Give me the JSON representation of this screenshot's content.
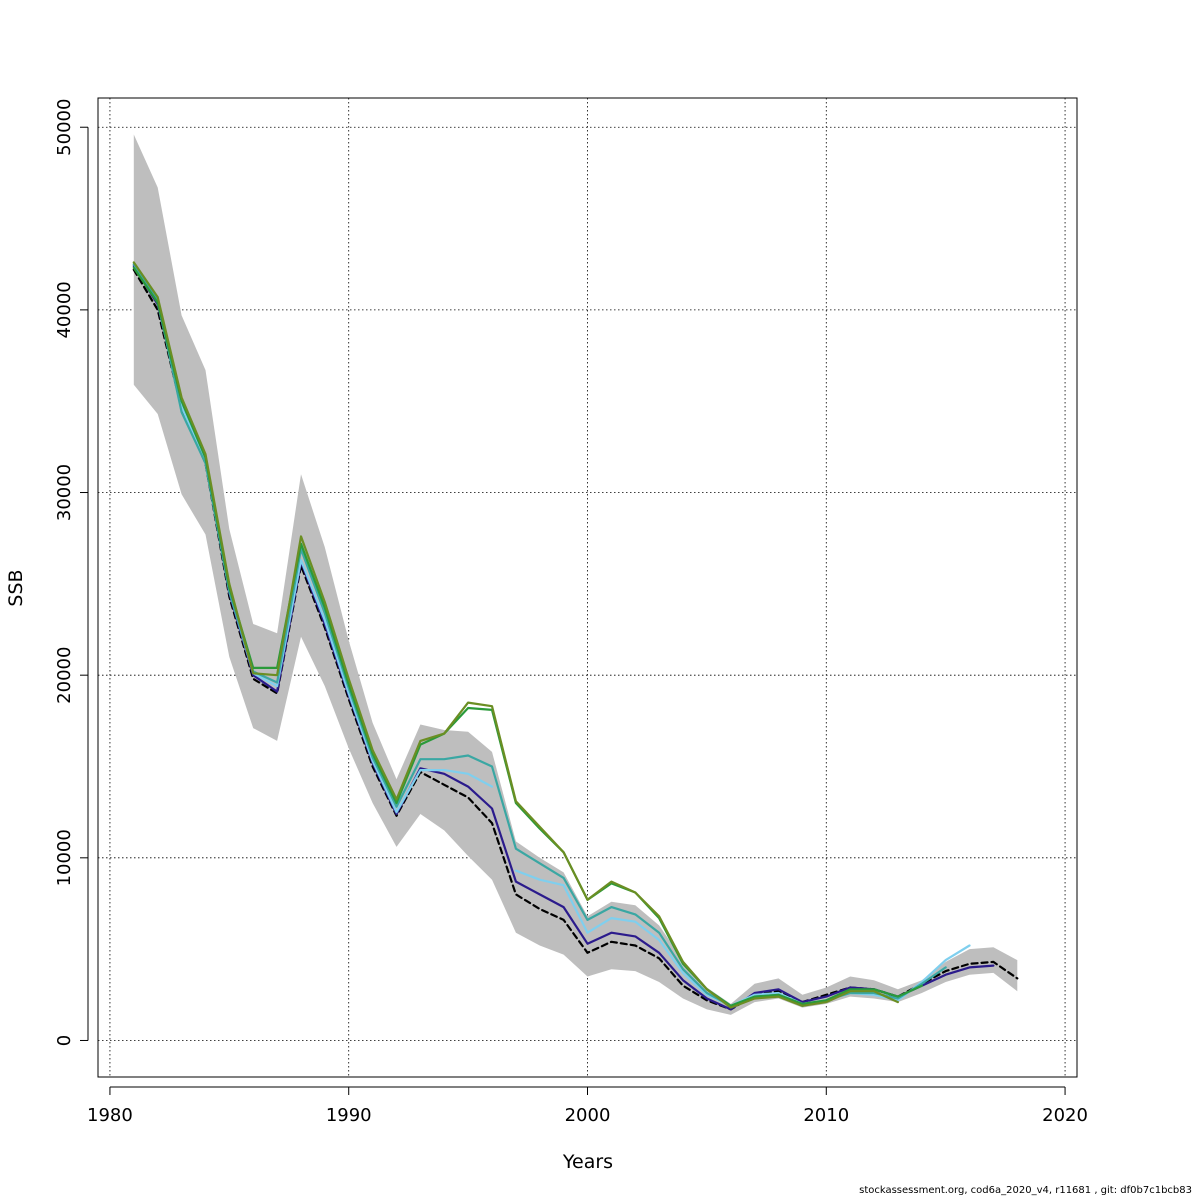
{
  "chart_data": {
    "type": "line",
    "xlabel": "Years",
    "ylabel": "SSB",
    "xlim": [
      1979.5,
      2020.5
    ],
    "ylim": [
      -2000,
      51600
    ],
    "x_ticks": [
      1980,
      1990,
      2000,
      2010,
      2020
    ],
    "y_ticks": [
      0,
      10000,
      20000,
      30000,
      40000,
      50000
    ],
    "x_tick_labels": [
      "1980",
      "1990",
      "2000",
      "2010",
      "2020"
    ],
    "y_tick_labels": [
      "0",
      "10000",
      "20000",
      "30000",
      "40000",
      "50000"
    ],
    "grid": true,
    "band": {
      "color": "#bebebe",
      "x": [
        1981,
        1982,
        1983,
        1984,
        1985,
        1986,
        1987,
        1988,
        1989,
        1990,
        1991,
        1992,
        1993,
        1994,
        1995,
        1996,
        1997,
        1998,
        1999,
        2000,
        2001,
        2002,
        2003,
        2004,
        2005,
        2006,
        2007,
        2008,
        2009,
        2010,
        2011,
        2012,
        2013,
        2014,
        2015,
        2016,
        2017,
        2018
      ],
      "upper": [
        49600,
        46700,
        39700,
        36700,
        28000,
        22800,
        22300,
        31000,
        27000,
        21900,
        17400,
        14300,
        17300,
        17000,
        16900,
        15800,
        10900,
        10000,
        9200,
        6800,
        7600,
        7400,
        6300,
        4400,
        2900,
        2000,
        3100,
        3400,
        2500,
        2900,
        3500,
        3300,
        2800,
        3300,
        4300,
        5000,
        5100,
        4400
      ],
      "lower": [
        35900,
        34300,
        29900,
        27700,
        21000,
        17100,
        16400,
        22100,
        19400,
        16000,
        13000,
        10600,
        12400,
        11500,
        10100,
        8800,
        5900,
        5200,
        4700,
        3500,
        3900,
        3800,
        3200,
        2300,
        1700,
        1400,
        2100,
        2300,
        1800,
        2000,
        2400,
        2300,
        2100,
        2600,
        3200,
        3600,
        3700,
        2700
      ]
    },
    "series": [
      {
        "color": "#000000",
        "dashed": true,
        "x": [
          1981,
          1982,
          1983,
          1984,
          1985,
          1986,
          1987,
          1988,
          1989,
          1990,
          1991,
          1992,
          1993,
          1994,
          1995,
          1996,
          1997,
          1998,
          1999,
          2000,
          2001,
          2002,
          2003,
          2004,
          2005,
          2006,
          2007,
          2008,
          2009,
          2010,
          2011,
          2012,
          2013,
          2014,
          2015,
          2016,
          2017,
          2018
        ],
        "y": [
          42200,
          40000,
          34600,
          31600,
          24300,
          19800,
          19000,
          26000,
          22600,
          18700,
          15000,
          12300,
          14700,
          14000,
          13300,
          11900,
          8000,
          7200,
          6600,
          4800,
          5400,
          5200,
          4500,
          3000,
          2200,
          1700,
          2500,
          2700,
          2100,
          2500,
          2900,
          2800,
          2400,
          3100,
          3800,
          4200,
          4300,
          3400
        ]
      },
      {
        "color": "#2b1b8c",
        "dashed": false,
        "x": [
          1981,
          1982,
          1983,
          1984,
          1985,
          1986,
          1987,
          1988,
          1989,
          1990,
          1991,
          1992,
          1993,
          1994,
          1995,
          1996,
          1997,
          1998,
          1999,
          2000,
          2001,
          2002,
          2003,
          2004,
          2005,
          2006,
          2007,
          2008,
          2009,
          2010,
          2011,
          2012,
          2013,
          2014,
          2015,
          2016,
          2017
        ],
        "y": [
          42400,
          40300,
          34800,
          31800,
          24500,
          20000,
          19100,
          26200,
          22800,
          18900,
          15200,
          12400,
          14900,
          14600,
          13900,
          12700,
          8700,
          8000,
          7300,
          5300,
          5900,
          5700,
          4800,
          3300,
          2300,
          1700,
          2600,
          2800,
          2100,
          2400,
          2900,
          2800,
          2400,
          3000,
          3600,
          4000,
          4100
        ]
      },
      {
        "color": "#7fcfee",
        "dashed": false,
        "x": [
          1981,
          1982,
          1983,
          1984,
          1985,
          1986,
          1987,
          1988,
          1989,
          1990,
          1991,
          1992,
          1993,
          1994,
          1995,
          1996
        ],
        "y": [
          42500,
          40400,
          34700,
          31700,
          24600,
          20100,
          19400,
          26300,
          23000,
          19000,
          15300,
          12500,
          14800,
          14800,
          14600,
          13900
        ]
      },
      {
        "color": "#7fcfee",
        "dashed": false,
        "x": [
          1997,
          1998,
          1999,
          2000,
          2001,
          2002,
          2003,
          2004,
          2005,
          2006,
          2007,
          2008,
          2009,
          2010,
          2011,
          2012,
          2013,
          2014,
          2015,
          2016
        ],
        "y": [
          9300,
          8800,
          8500,
          5900,
          6700,
          6500,
          5500,
          3700,
          2500,
          1900,
          2500,
          2600,
          2000,
          2200,
          2600,
          2500,
          2200,
          3200,
          4400,
          5200
        ]
      },
      {
        "color": "#3aa7a3",
        "dashed": false,
        "x": [
          1981,
          1982,
          1983,
          1984,
          1985,
          1986,
          1987,
          1988,
          1989,
          1990,
          1991,
          1992,
          1993,
          1994,
          1995,
          1996,
          1997,
          1998,
          1999,
          2000,
          2001,
          2002,
          2003,
          2004,
          2005,
          2006,
          2007,
          2008,
          2009,
          2010,
          2011,
          2012,
          2013,
          2014,
          2015
        ],
        "y": [
          42500,
          40500,
          34400,
          31600,
          24600,
          20200,
          19600,
          26900,
          23400,
          19300,
          15500,
          12800,
          15400,
          15400,
          15600,
          15000,
          10500,
          9700,
          8900,
          6600,
          7300,
          6900,
          5900,
          3900,
          2600,
          1900,
          2400,
          2500,
          1900,
          2200,
          2600,
          2600,
          2300,
          3100,
          4000
        ]
      },
      {
        "color": "#2a9a3a",
        "dashed": false,
        "x": [
          1981,
          1982,
          1983,
          1984,
          1985,
          1986,
          1987,
          1988,
          1989,
          1990,
          1991,
          1992,
          1993,
          1994,
          1995,
          1996,
          1997,
          1998,
          1999,
          2000,
          2001,
          2002,
          2003,
          2004,
          2005,
          2006,
          2007,
          2008,
          2009,
          2010,
          2011,
          2012,
          2013,
          2014
        ],
        "y": [
          42300,
          40400,
          35000,
          31900,
          24800,
          20400,
          20400,
          27200,
          23700,
          19500,
          15700,
          13000,
          16200,
          16800,
          18200,
          18100,
          13000,
          11600,
          10300,
          7700,
          8600,
          8100,
          6700,
          4200,
          2800,
          1900,
          2400,
          2500,
          2000,
          2200,
          2800,
          2800,
          2400,
          3000
        ]
      },
      {
        "color": "#6b8e23",
        "dashed": false,
        "x": [
          1981,
          1982,
          1983,
          1984,
          1985,
          1986,
          1987,
          1988,
          1989,
          1990,
          1991,
          1992,
          1993,
          1994,
          1995,
          1996,
          1997,
          1998,
          1999,
          2000,
          2001,
          2002,
          2003,
          2004,
          2005,
          2006,
          2007,
          2008,
          2009,
          2010,
          2011,
          2012,
          2013
        ],
        "y": [
          42600,
          40700,
          35200,
          32100,
          25000,
          20100,
          20000,
          27600,
          24000,
          19800,
          15900,
          13200,
          16400,
          16800,
          18500,
          18300,
          13100,
          11700,
          10300,
          7700,
          8700,
          8100,
          6800,
          4300,
          2800,
          1800,
          2300,
          2400,
          1900,
          2100,
          2700,
          2700,
          2100
        ]
      }
    ]
  },
  "footer": {
    "text": "stockassessment.org, cod6a_2020_v4, r11681 , git: df0b7c1bcb83"
  }
}
